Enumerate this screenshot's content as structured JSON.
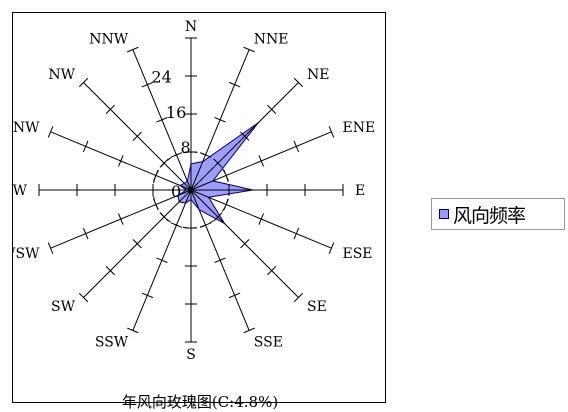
{
  "chart_data": {
    "type": "radar",
    "title": "年风向玫瑰图(C:4.8%)",
    "directions": [
      "N",
      "NNE",
      "NE",
      "ENE",
      "E",
      "ESE",
      "SE",
      "SSE",
      "S",
      "SSW",
      "SW",
      "WSW",
      "W",
      "WNW",
      "NW",
      "NNW"
    ],
    "series": [
      {
        "name": "风向频率",
        "values": [
          5.5,
          6.5,
          20,
          5,
          13,
          4,
          10,
          4.5,
          2,
          3,
          3.5,
          3,
          1,
          2.5,
          2,
          2
        ]
      }
    ],
    "radial_ticks": [
      0,
      8,
      16,
      24
    ],
    "rmax": 32,
    "colors": {
      "fill": "#9999ff",
      "stroke": "#000080"
    }
  },
  "legend": {
    "label": "风向频率"
  }
}
